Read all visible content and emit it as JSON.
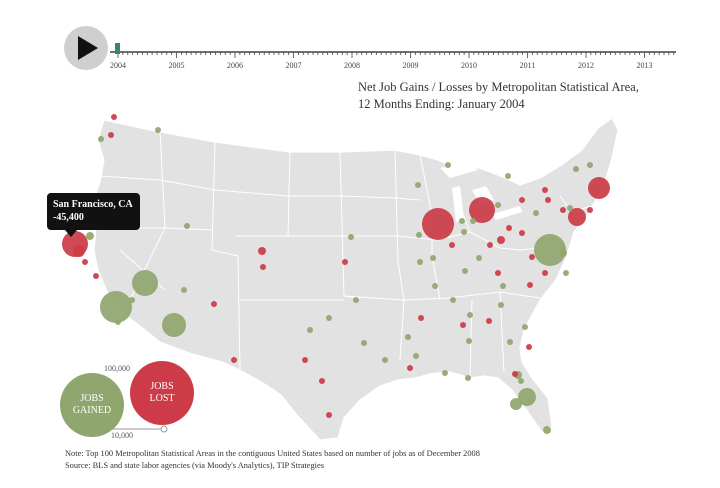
{
  "player": {
    "play_icon": "play-icon",
    "years": [
      "2004",
      "2005",
      "2006",
      "2007",
      "2008",
      "2009",
      "2010",
      "2011",
      "2012",
      "2013"
    ],
    "current_year": "2004"
  },
  "title": {
    "line1": "Net Job Gains / Losses by  Metropolitan Statistical Area,",
    "line2": "12 Months Ending:  January  2004"
  },
  "tooltip": {
    "name": "San Francisco, CA",
    "value": "-45,400"
  },
  "legend": {
    "gained_line1": "JOBS",
    "gained_line2": "GAINED",
    "lost_line1": "JOBS",
    "lost_line2": "LOST",
    "size_large": "100,000",
    "size_small": "10,000"
  },
  "notes": {
    "note": "Note:  Top 100 Metropolitan Statistical Areas in the contiguous United States based on number of jobs as of December 2008",
    "source": "Source:  BLS and state labor agencies (via Moody's Analytics), TIP Strategies"
  },
  "colors": {
    "gain": "#8fa66e",
    "loss": "#cc3b47",
    "land": "#e2e2e2",
    "border": "#ffffff"
  }
}
